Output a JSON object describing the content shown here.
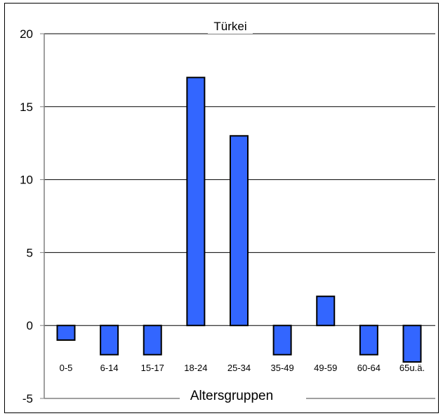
{
  "chart_data": {
    "type": "bar",
    "title": "Türkei",
    "xlabel": "Altersgruppen",
    "ylabel": "",
    "categories": [
      "0-5",
      "6-14",
      "15-17",
      "18-24",
      "25-34",
      "35-49",
      "49-59",
      "60-64",
      "65u.ä."
    ],
    "values": [
      -1,
      -2,
      -2,
      17,
      13,
      -2,
      2,
      -2,
      -2.5
    ],
    "ylim": [
      -5,
      20
    ],
    "yticks": [
      "20",
      "15",
      "10",
      "5",
      "0",
      "-5"
    ],
    "grid": true,
    "legend": "none",
    "bar_color": "#3366ff"
  }
}
